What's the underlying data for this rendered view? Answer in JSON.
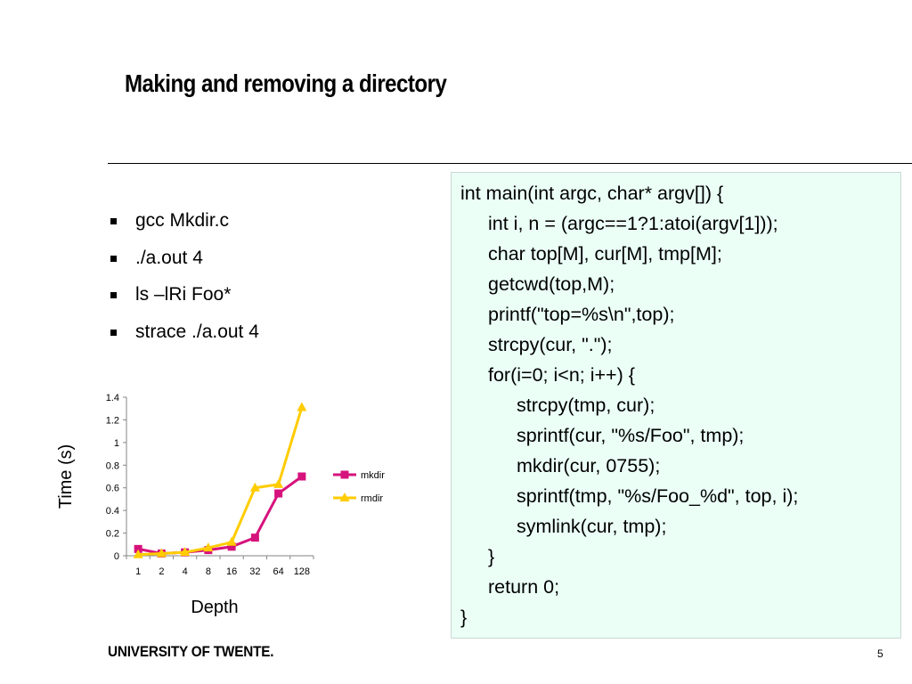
{
  "slide": {
    "title": "Making and removing a directory",
    "footer": "UNIVERSITY OF TWENTE.",
    "page_number": "5"
  },
  "bullets": [
    "gcc Mkdir.c",
    "./a.out 4",
    "ls –lRi Foo*",
    "strace ./a.out 4"
  ],
  "code": [
    {
      "text": "int main(int argc, char* argv[]) {",
      "indent": 0
    },
    {
      "text": "int i, n = (argc==1?1:atoi(argv[1]));",
      "indent": 1
    },
    {
      "text": "char top[M], cur[M], tmp[M];",
      "indent": 1
    },
    {
      "text": "getcwd(top,M);",
      "indent": 1
    },
    {
      "text": "printf(\"top=%s\\n\",top);",
      "indent": 1
    },
    {
      "text": "strcpy(cur, \".\");",
      "indent": 1
    },
    {
      "text": "for(i=0; i<n; i++) {",
      "indent": 1
    },
    {
      "text": "strcpy(tmp, cur);",
      "indent": 2
    },
    {
      "text": "sprintf(cur, \"%s/Foo\", tmp);",
      "indent": 2
    },
    {
      "text": "mkdir(cur, 0755);",
      "indent": 2
    },
    {
      "text": "sprintf(tmp, \"%s/Foo_%d\", top, i);",
      "indent": 2
    },
    {
      "text": "symlink(cur, tmp);",
      "indent": 2
    },
    {
      "text": "}",
      "indent": 1
    },
    {
      "text": "return 0;",
      "indent": 1
    },
    {
      "text": "}",
      "indent": 0
    }
  ],
  "chart_data": {
    "type": "line",
    "categories": [
      "1",
      "2",
      "4",
      "8",
      "16",
      "32",
      "64",
      "128"
    ],
    "series": [
      {
        "name": "mkdir",
        "color": "#d6127c",
        "marker": "square",
        "values": [
          0.06,
          0.02,
          0.03,
          0.05,
          0.08,
          0.16,
          0.55,
          0.7
        ]
      },
      {
        "name": "rmdir",
        "color": "#ffcc00",
        "marker": "triangle",
        "values": [
          0.01,
          0.02,
          0.03,
          0.07,
          0.12,
          0.6,
          0.63,
          1.31
        ]
      }
    ],
    "title": "",
    "xlabel": "Depth",
    "ylabel": "Time (s)",
    "ylim": [
      0,
      1.4
    ],
    "yticks": [
      "0",
      "0.2",
      "0.4",
      "0.6",
      "0.8",
      "1",
      "1.2",
      "1.4"
    ],
    "grid": false,
    "legend": "right"
  }
}
